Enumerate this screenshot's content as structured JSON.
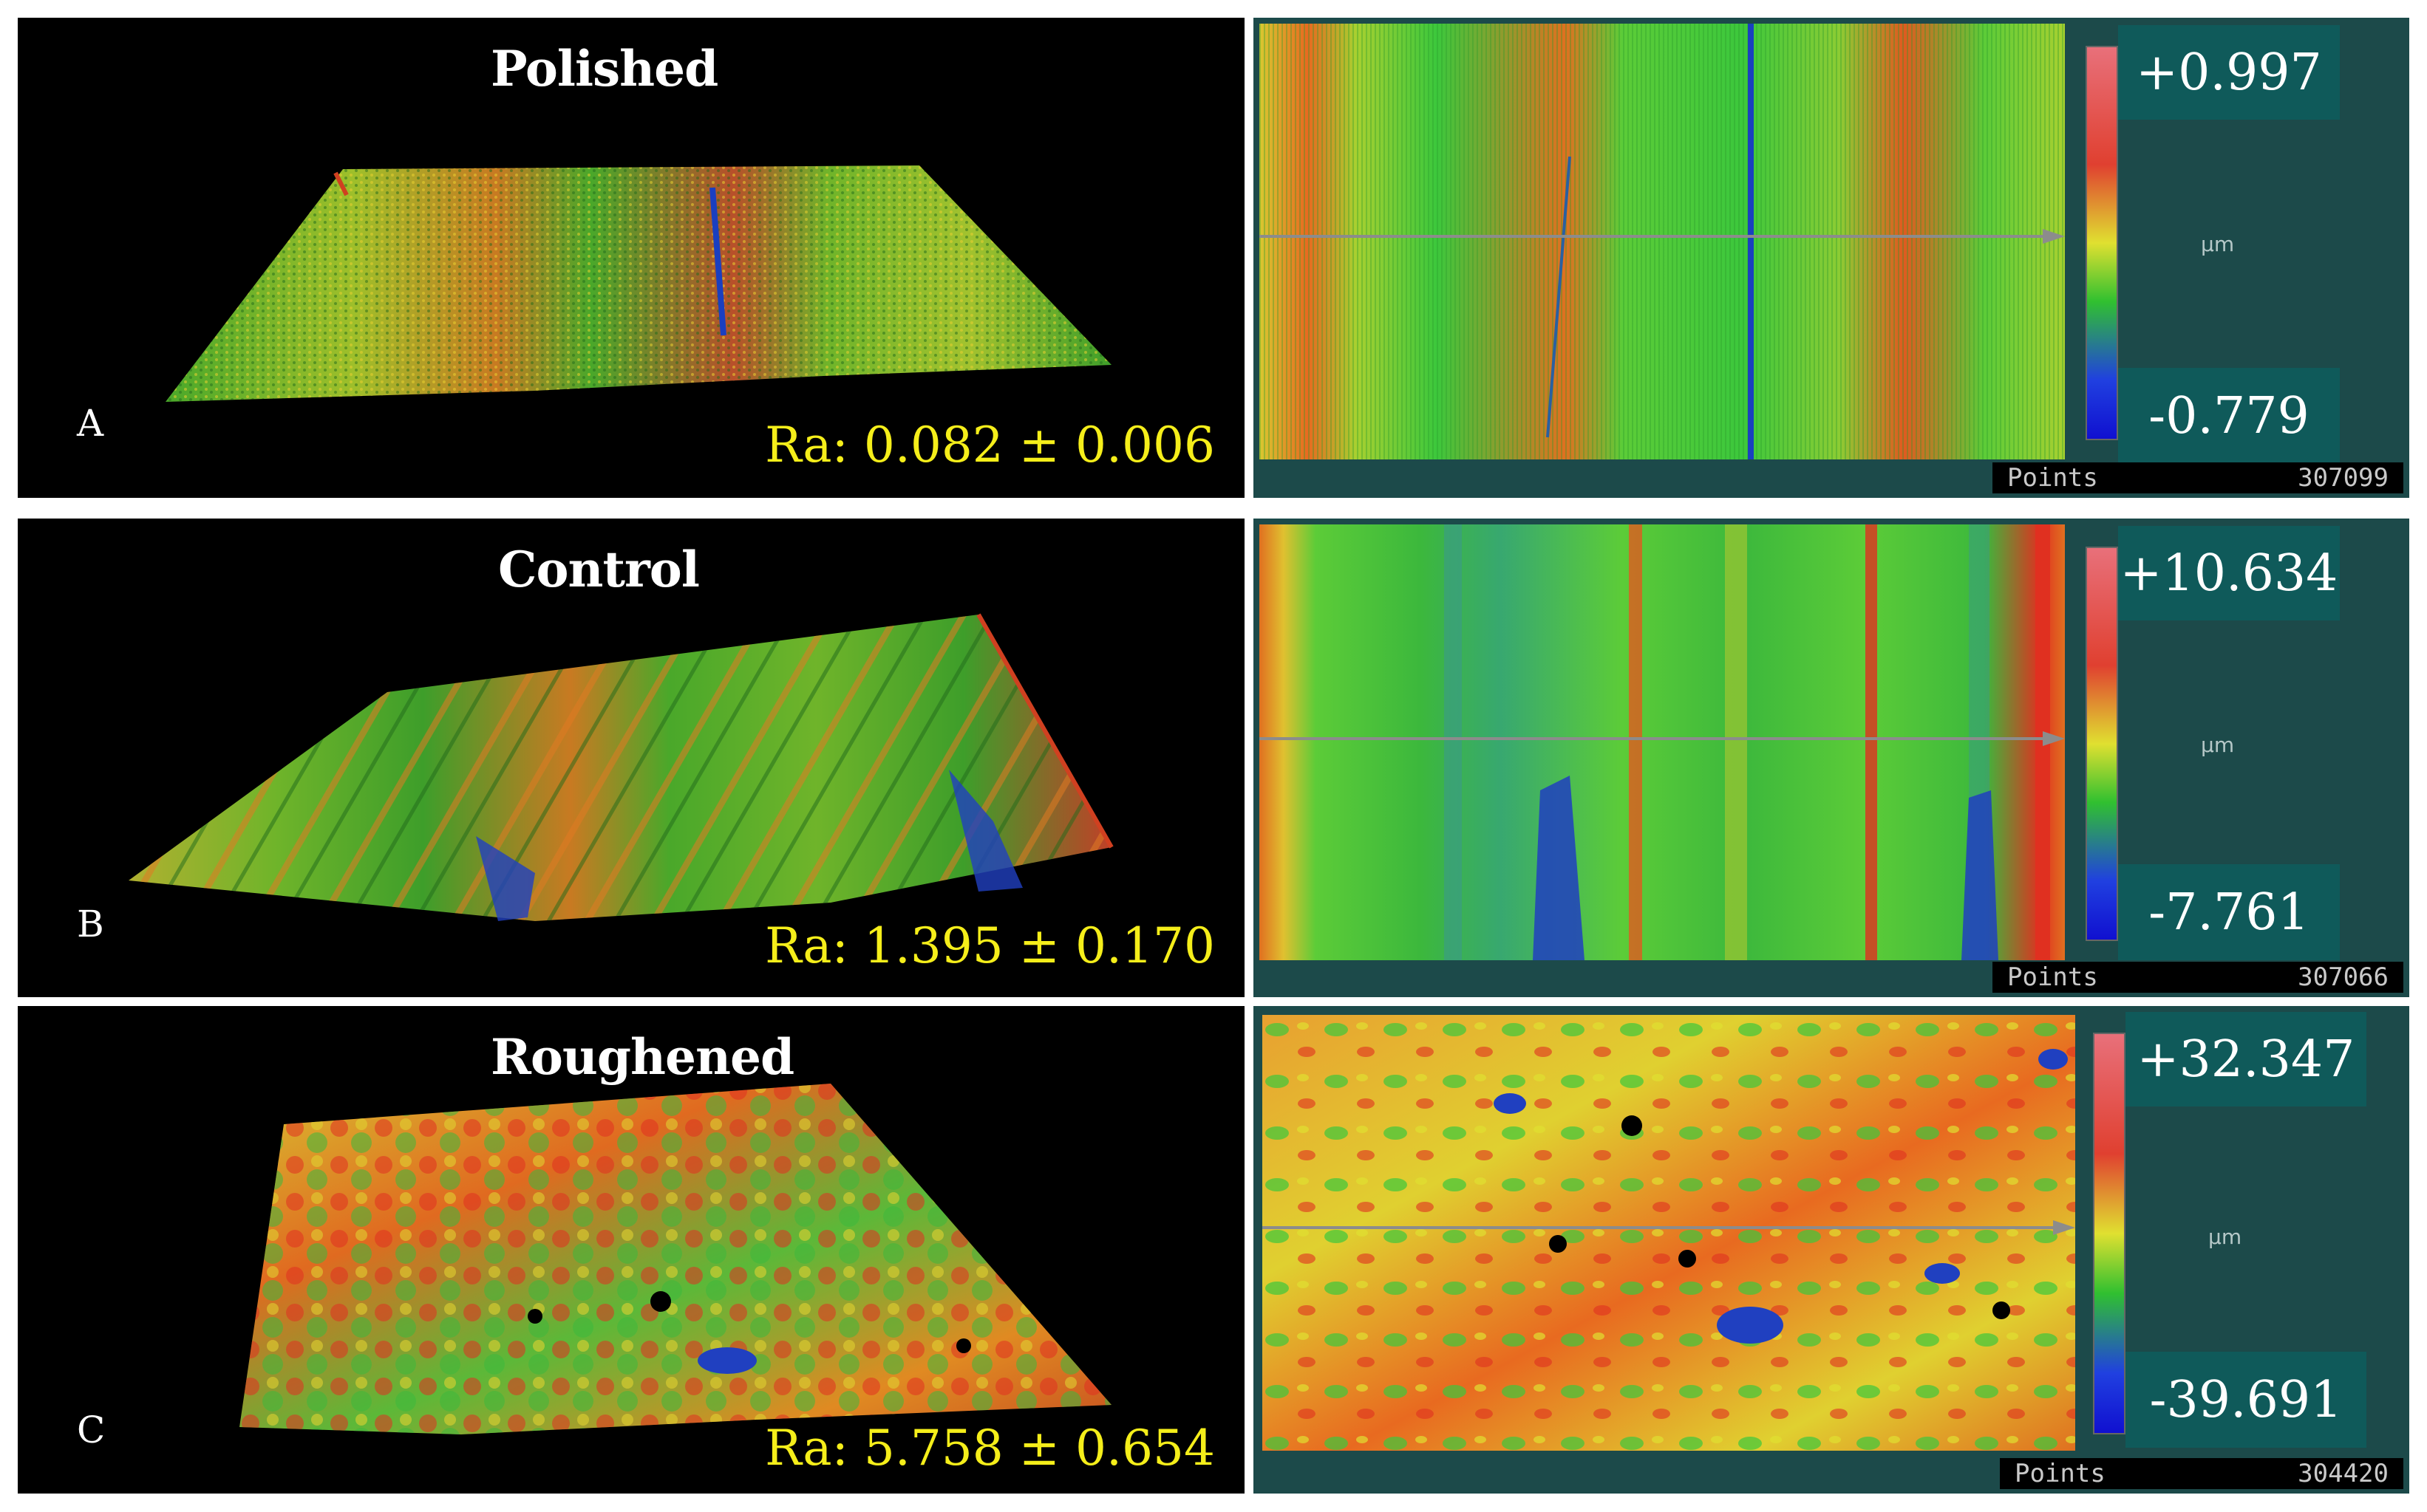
{
  "panels": [
    {
      "letter": "A",
      "title": "Polished",
      "ra": "Ra: 0.082 ± 0.006",
      "scale_max": "+0.997",
      "scale_min": "-0.779",
      "unit": "µm",
      "points_label": "Points",
      "points_value": "307099"
    },
    {
      "letter": "B",
      "title": "Control",
      "ra": "Ra: 1.395 ± 0.170",
      "scale_max": "+10.634",
      "scale_min": "-7.761",
      "unit": "µm",
      "points_label": "Points",
      "points_value": "307066"
    },
    {
      "letter": "C",
      "title": "Roughened",
      "ra": "Ra: 5.758 ± 0.654",
      "scale_max": "+32.347",
      "scale_min": "-39.691",
      "unit": "µm",
      "points_label": "Points",
      "points_value": "304420"
    }
  ],
  "colors": {
    "background": "#000000",
    "map_frame": "#1c4a4a",
    "value_box": "#0f5a5a",
    "ra_text": "#f5ee1a",
    "green": "#3cc83c",
    "yellow": "#e6e632",
    "red": "#e03020",
    "blue": "#2040c0"
  }
}
